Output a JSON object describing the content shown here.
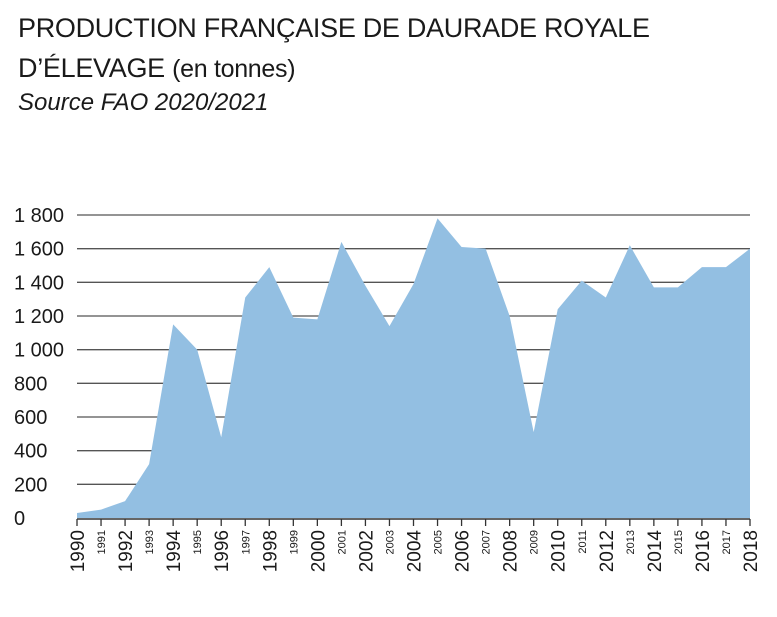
{
  "header": {
    "title_line1": "PRODUCTION FRANÇAISE DE DAURADE ROYALE",
    "title_line2_main": "D’ÉLEVAGE",
    "title_line2_sub": "(en tonnes)",
    "source": "Source FAO 2020/2021"
  },
  "colors": {
    "area_fill": "#93bfe2",
    "grid": "#555555",
    "axis": "#333333"
  },
  "chart_data": {
    "type": "area",
    "title": "PRODUCTION FRANÇAISE DE DAURADE ROYALE D’ÉLEVAGE (en tonnes)",
    "xlabel": "",
    "ylabel": "",
    "ylim": [
      0,
      1800
    ],
    "yticks": [
      0,
      200,
      400,
      600,
      800,
      1000,
      1200,
      1400,
      1600,
      1800
    ],
    "ytick_labels": [
      "0",
      "200",
      "400",
      "600",
      "800",
      "1 000",
      "1 200",
      "1 400",
      "1 600",
      "1 800"
    ],
    "x": [
      1990,
      1991,
      1992,
      1993,
      1994,
      1995,
      1996,
      1997,
      1998,
      1999,
      2000,
      2001,
      2002,
      2003,
      2004,
      2005,
      2006,
      2007,
      2008,
      2009,
      2010,
      2011,
      2012,
      2013,
      2014,
      2015,
      2016,
      2017,
      2018
    ],
    "x_labels": [
      "1990",
      "1991",
      "1992",
      "1993",
      "1994",
      "1995",
      "1996",
      "1997",
      "1998",
      "1999",
      "2000",
      "2001",
      "2002",
      "2003",
      "2004",
      "2005",
      "2006",
      "2007",
      "2008",
      "2009",
      "2010",
      "2011",
      "2012",
      "2013",
      "2014",
      "2015",
      "2016",
      "2017",
      "2018"
    ],
    "values": [
      30,
      50,
      100,
      320,
      1150,
      1000,
      480,
      1310,
      1490,
      1190,
      1180,
      1640,
      1380,
      1140,
      1390,
      1780,
      1610,
      1600,
      1200,
      510,
      1240,
      1410,
      1310,
      1620,
      1370,
      1370,
      1490,
      1490,
      1600
    ],
    "grid": true,
    "legend": "none"
  }
}
